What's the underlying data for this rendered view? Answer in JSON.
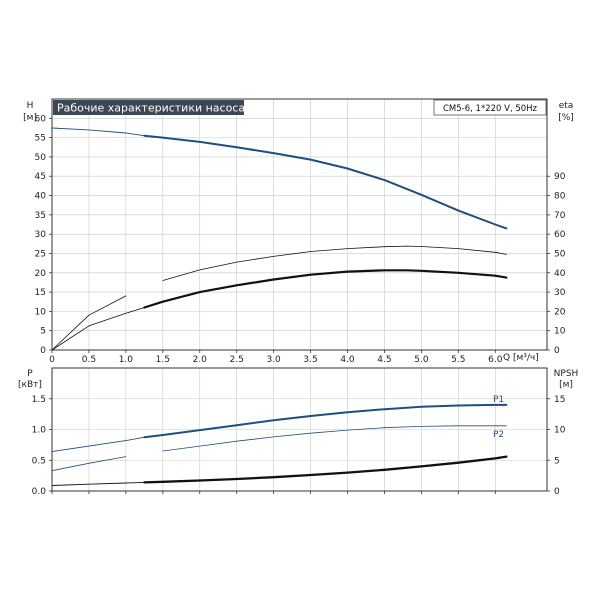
{
  "chart_data": [
    {
      "type": "line",
      "title": "Рабочие характеристики насоса",
      "model": "CM5-6, 1*220 V, 50Hz",
      "left_axis_label": "H",
      "left_axis_unit": "[м]",
      "right_axis_label": "eta",
      "right_axis_unit": "[%]",
      "xlabel": "Q [м³/ч]",
      "xlim": [
        0,
        6.7
      ],
      "ylim": [
        0,
        65
      ],
      "right_ylim": [
        0,
        130
      ],
      "x_ticks": [
        "0",
        "0.5",
        "1.0",
        "1.5",
        "2.0",
        "2.5",
        "3.0",
        "3.5",
        "4.0",
        "4.5",
        "5.0",
        "5.5",
        "6.0"
      ],
      "x_tick_values": [
        0,
        0.5,
        1.0,
        1.5,
        2.0,
        2.5,
        3.0,
        3.5,
        4.0,
        4.5,
        5.0,
        5.5,
        6.0
      ],
      "y_ticks": [
        0,
        5,
        10,
        15,
        20,
        25,
        30,
        35,
        40,
        45,
        50,
        55,
        60
      ],
      "right_y_ticks": [
        0,
        10,
        20,
        30,
        40,
        50,
        60,
        70,
        80,
        90
      ],
      "grid": true,
      "series": [
        {
          "axis": "left",
          "color": "#1f4f80",
          "x": [
            0,
            0.5,
            1.0,
            1.25,
            1.5,
            2.0,
            2.5,
            3.0,
            3.5,
            4.0,
            4.5,
            5.0,
            5.5,
            6.0,
            6.15
          ],
          "y": [
            57.5,
            57.0,
            56.2,
            55.5,
            55.0,
            53.9,
            52.5,
            51.0,
            49.3,
            47.0,
            44.0,
            40.2,
            36.1,
            32.5,
            31.5
          ],
          "widths": [
            0.9,
            2.0
          ]
        },
        {
          "axis": "right",
          "color": "#111111",
          "x": [
            0,
            0.5,
            1.0,
            1.5,
            2.0,
            2.5,
            3.0,
            3.5,
            4.0,
            4.5,
            4.8,
            5.0,
            5.5,
            6.0,
            6.15
          ],
          "y": [
            0,
            18,
            28,
            36,
            41.5,
            45.5,
            48.5,
            51,
            52.5,
            53.5,
            53.8,
            53.6,
            52.5,
            50.6,
            49.5
          ],
          "widths": [
            0.8,
            0.8
          ]
        },
        {
          "axis": "right",
          "color": "#111111",
          "x": [
            0,
            0.5,
            1.0,
            1.25,
            1.5,
            2.0,
            2.5,
            3.0,
            3.5,
            4.0,
            4.5,
            4.8,
            5.0,
            5.5,
            6.0,
            6.15
          ],
          "y": [
            0,
            12.5,
            19,
            22,
            25,
            30,
            33.5,
            36.5,
            39,
            40.6,
            41.3,
            41.3,
            41.0,
            40.0,
            38.5,
            37.5
          ],
          "widths": [
            0.8,
            2.2
          ]
        }
      ]
    },
    {
      "type": "line",
      "left_axis_label": "P",
      "left_axis_unit": "[кВт]",
      "right_axis_label": "NPSH",
      "right_axis_unit": "[м]",
      "xlim": [
        0,
        6.7
      ],
      "ylim": [
        0,
        2
      ],
      "right_ylim": [
        0,
        20
      ],
      "y_ticks": [
        "0.0",
        "0.5",
        "1.0",
        "1.5"
      ],
      "y_tick_values": [
        0,
        0.5,
        1.0,
        1.5
      ],
      "right_y_ticks": [
        0,
        5,
        10,
        15
      ],
      "grid": true,
      "series": [
        {
          "name": "P1",
          "axis": "left",
          "color": "#1f4f80",
          "x": [
            0,
            0.5,
            1.0,
            1.25,
            1.5,
            2.0,
            2.5,
            3.0,
            3.5,
            4.0,
            4.5,
            5.0,
            5.5,
            6.0,
            6.15
          ],
          "y": [
            0.64,
            0.73,
            0.82,
            0.875,
            0.91,
            0.99,
            1.07,
            1.15,
            1.22,
            1.28,
            1.33,
            1.37,
            1.39,
            1.4,
            1.4
          ],
          "widths": [
            0.9,
            2.0
          ]
        },
        {
          "name": "P2",
          "axis": "left",
          "color": "#1f4f80",
          "x": [
            0,
            0.5,
            1.0,
            1.5,
            2.0,
            2.5,
            3.0,
            3.5,
            4.0,
            4.5,
            5.0,
            5.5,
            6.0,
            6.15
          ],
          "y": [
            0.33,
            0.45,
            0.56,
            0.65,
            0.73,
            0.81,
            0.88,
            0.94,
            0.99,
            1.03,
            1.05,
            1.06,
            1.06,
            1.06
          ],
          "widths": [
            0.8,
            0.8
          ]
        },
        {
          "axis": "right",
          "color": "#111111",
          "x": [
            0,
            0.5,
            1.0,
            1.25,
            1.5,
            2.0,
            2.5,
            3.0,
            3.5,
            4.0,
            4.5,
            5.0,
            5.5,
            6.0,
            6.15
          ],
          "y": [
            0.9,
            1.1,
            1.3,
            1.4,
            1.5,
            1.7,
            1.95,
            2.25,
            2.6,
            3.0,
            3.45,
            4.0,
            4.6,
            5.3,
            5.6
          ],
          "widths": [
            0.9,
            2.3
          ]
        }
      ]
    }
  ]
}
